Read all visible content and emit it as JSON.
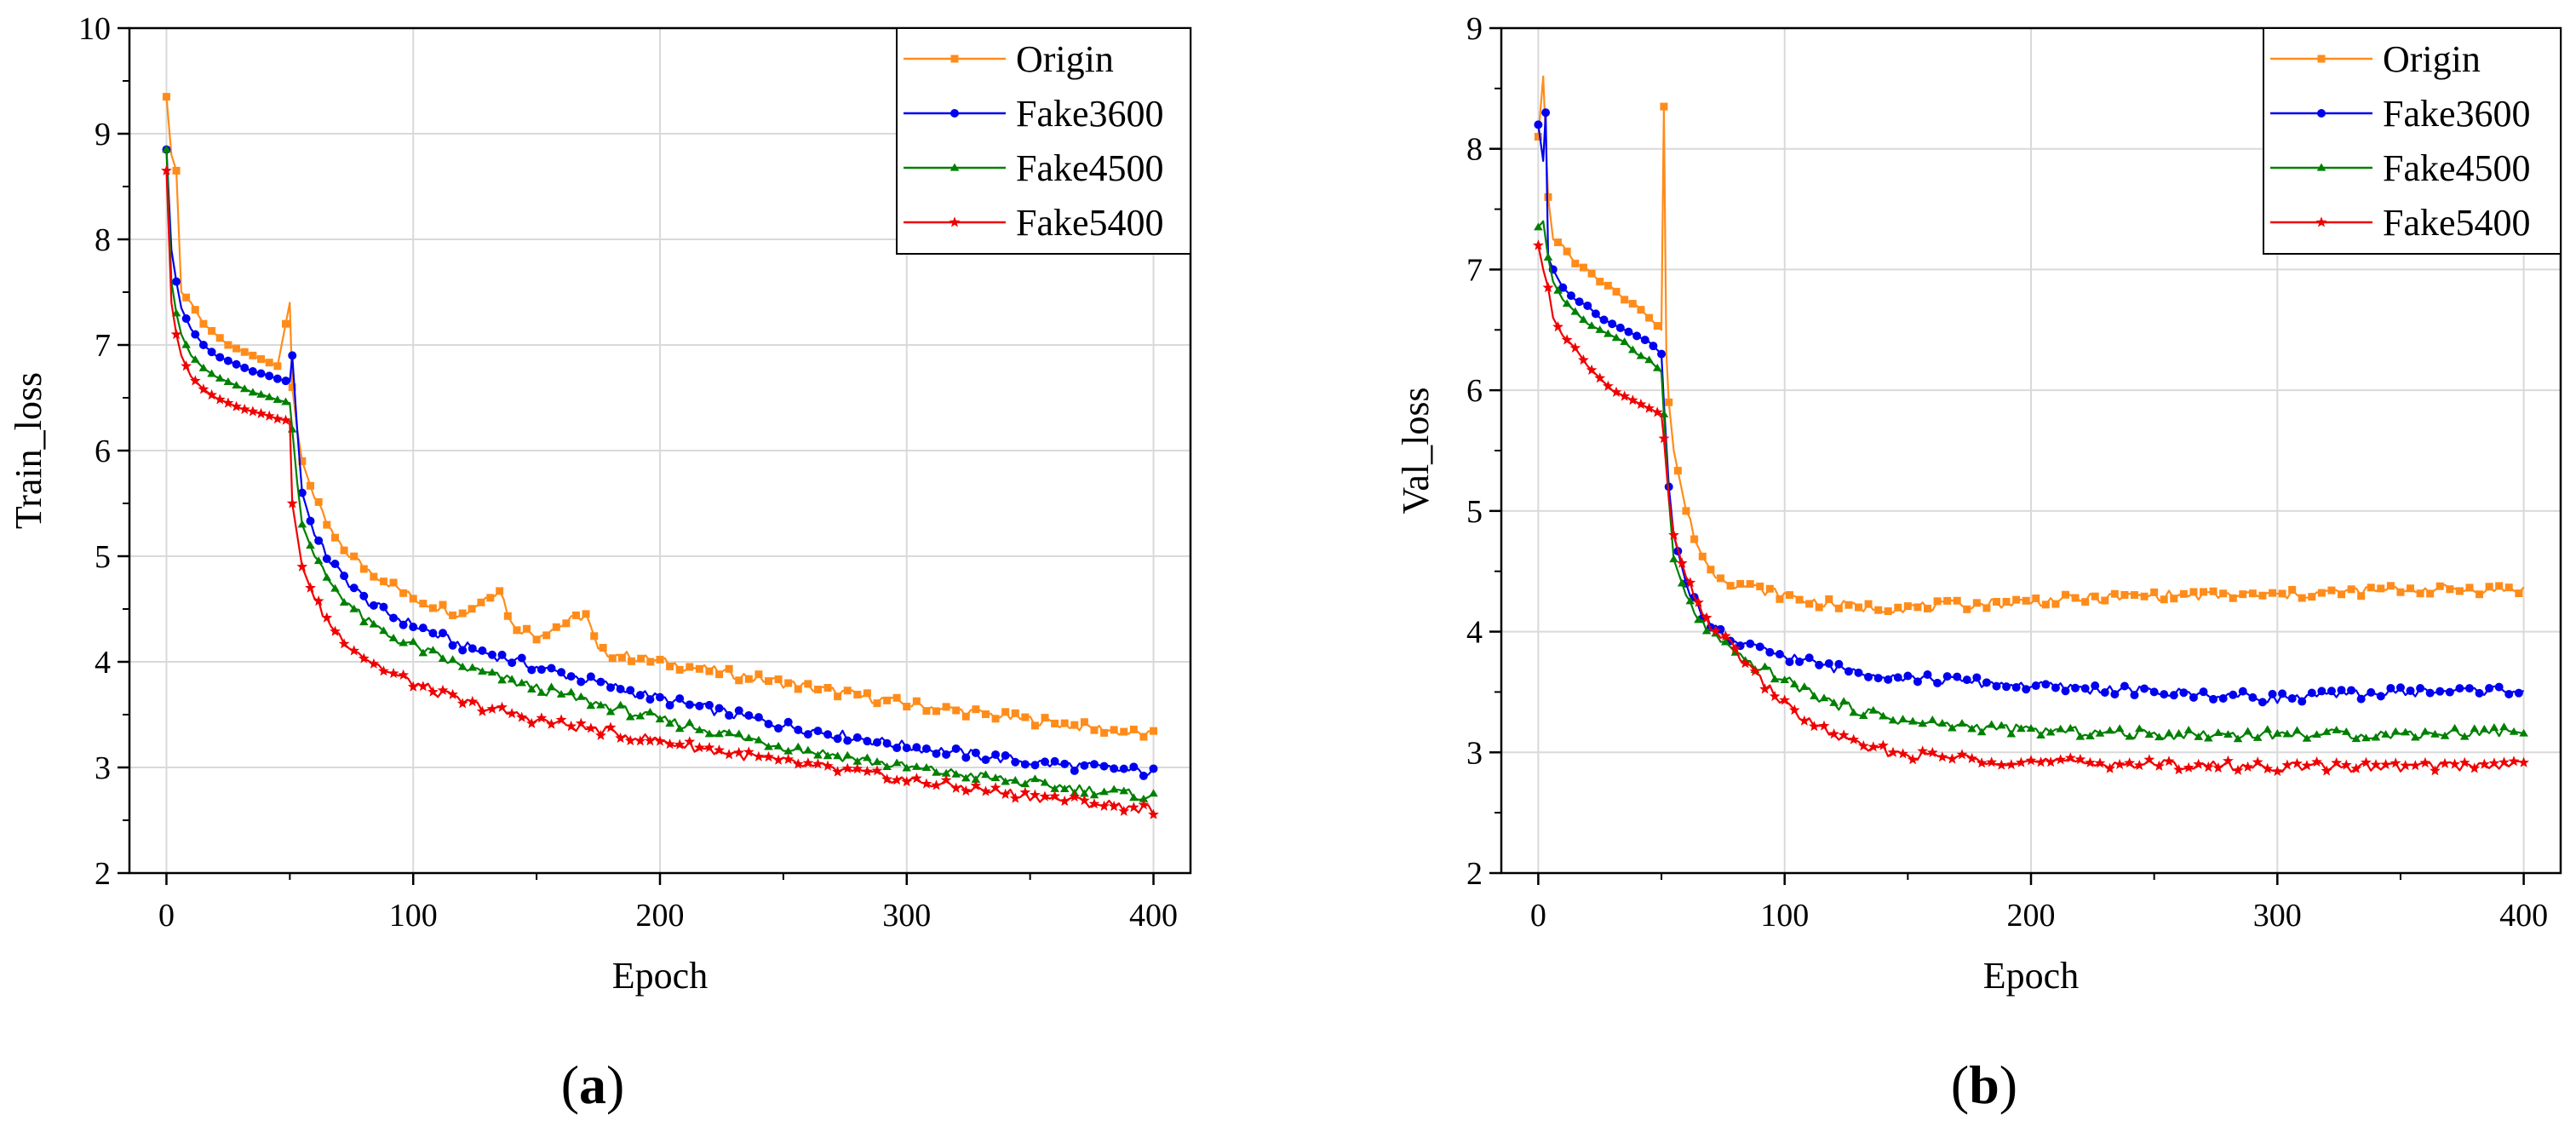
{
  "figure": {
    "panels": [
      {
        "label_open": "(",
        "label_letter": "a",
        "label_close": ")"
      },
      {
        "label_open": "(",
        "label_letter": "b",
        "label_close": ")"
      }
    ]
  },
  "colors": {
    "Origin": "#ff8c1a",
    "Fake3600": "#0000f0",
    "Fake4500": "#008000",
    "Fake5400": "#f00000",
    "grid": "#d9d9d9",
    "axis": "#000000"
  },
  "chart_data": [
    {
      "type": "line",
      "panel": "a",
      "xlabel": "Epoch",
      "ylabel": "Train_loss",
      "xlim": [
        -15,
        415
      ],
      "ylim": [
        2,
        10
      ],
      "xticks": [
        0,
        100,
        200,
        300,
        400
      ],
      "xtick_labels": [
        "0",
        "100",
        "200",
        "300",
        "400"
      ],
      "yticks": [
        2,
        3,
        4,
        5,
        6,
        7,
        8,
        9,
        10
      ],
      "ytick_labels": [
        "2",
        "3",
        "4",
        "5",
        "6",
        "7",
        "8",
        "9",
        "10"
      ],
      "grid": true,
      "legend_position": "top-right",
      "series": [
        {
          "name": "Origin",
          "marker": "square",
          "x": [
            0,
            2,
            4,
            6,
            10,
            15,
            20,
            25,
            30,
            35,
            40,
            45,
            50,
            51,
            53,
            55,
            60,
            65,
            70,
            80,
            90,
            100,
            120,
            135,
            140,
            150,
            170,
            175,
            200,
            250,
            300,
            350,
            400
          ],
          "y": [
            9.35,
            8.8,
            8.65,
            7.5,
            7.4,
            7.2,
            7.1,
            7.0,
            6.95,
            6.9,
            6.85,
            6.8,
            7.4,
            6.6,
            6.2,
            5.9,
            5.55,
            5.3,
            5.1,
            4.9,
            4.75,
            4.6,
            4.45,
            4.7,
            4.35,
            4.25,
            4.45,
            4.1,
            4.0,
            3.8,
            3.6,
            3.45,
            3.3
          ]
        },
        {
          "name": "Fake3600",
          "marker": "circle",
          "x": [
            0,
            2,
            4,
            6,
            10,
            15,
            20,
            25,
            30,
            35,
            40,
            45,
            50,
            51,
            53,
            55,
            60,
            65,
            70,
            80,
            90,
            100,
            120,
            150,
            200,
            250,
            300,
            350,
            400
          ],
          "y": [
            8.85,
            7.9,
            7.6,
            7.35,
            7.15,
            7.0,
            6.9,
            6.85,
            6.8,
            6.75,
            6.72,
            6.68,
            6.65,
            6.9,
            6.2,
            5.6,
            5.2,
            5.0,
            4.85,
            4.6,
            4.45,
            4.35,
            4.15,
            3.95,
            3.65,
            3.4,
            3.2,
            3.05,
            2.95
          ]
        },
        {
          "name": "Fake4500",
          "marker": "triangle",
          "x": [
            0,
            2,
            4,
            6,
            10,
            15,
            20,
            25,
            30,
            35,
            40,
            45,
            50,
            51,
            53,
            55,
            60,
            65,
            70,
            80,
            90,
            100,
            120,
            150,
            200,
            250,
            300,
            350,
            400
          ],
          "y": [
            8.85,
            7.6,
            7.3,
            7.1,
            6.9,
            6.78,
            6.7,
            6.65,
            6.6,
            6.55,
            6.52,
            6.48,
            6.45,
            6.2,
            5.7,
            5.3,
            5.0,
            4.8,
            4.65,
            4.4,
            4.25,
            4.15,
            3.95,
            3.75,
            3.45,
            3.2,
            3.0,
            2.85,
            2.72
          ]
        },
        {
          "name": "Fake5400",
          "marker": "star",
          "x": [
            0,
            2,
            4,
            6,
            10,
            15,
            20,
            25,
            30,
            35,
            40,
            45,
            50,
            51,
            53,
            55,
            60,
            65,
            70,
            80,
            90,
            100,
            120,
            150,
            200,
            250,
            300,
            350,
            400
          ],
          "y": [
            8.65,
            7.4,
            7.1,
            6.9,
            6.7,
            6.58,
            6.5,
            6.45,
            6.4,
            6.37,
            6.34,
            6.3,
            6.28,
            5.5,
            5.2,
            4.9,
            4.6,
            4.4,
            4.25,
            4.05,
            3.9,
            3.8,
            3.62,
            3.45,
            3.25,
            3.05,
            2.88,
            2.73,
            2.6
          ]
        }
      ]
    },
    {
      "type": "line",
      "panel": "b",
      "xlabel": "Epoch",
      "ylabel": "Val_loss",
      "xlim": [
        -15,
        415
      ],
      "ylim": [
        2,
        9
      ],
      "xticks": [
        0,
        100,
        200,
        300,
        400
      ],
      "xtick_labels": [
        "0",
        "100",
        "200",
        "300",
        "400"
      ],
      "yticks": [
        2,
        3,
        4,
        5,
        6,
        7,
        8,
        9
      ],
      "ytick_labels": [
        "2",
        "3",
        "4",
        "5",
        "6",
        "7",
        "8",
        "9"
      ],
      "grid": true,
      "legend_position": "top-right",
      "series": [
        {
          "name": "Origin",
          "marker": "square",
          "x": [
            0,
            2,
            4,
            6,
            10,
            15,
            20,
            25,
            30,
            35,
            40,
            45,
            50,
            51,
            52,
            53,
            55,
            60,
            65,
            70,
            80,
            90,
            100,
            110,
            130,
            150,
            200,
            250,
            300,
            350,
            400
          ],
          "y": [
            8.1,
            8.6,
            7.6,
            7.25,
            7.2,
            7.05,
            7.0,
            6.9,
            6.85,
            6.75,
            6.7,
            6.6,
            6.5,
            8.35,
            6.3,
            5.9,
            5.5,
            5.0,
            4.7,
            4.5,
            4.4,
            4.35,
            4.3,
            4.25,
            4.2,
            4.2,
            4.25,
            4.3,
            4.3,
            4.35,
            4.35
          ]
        },
        {
          "name": "Fake3600",
          "marker": "circle",
          "x": [
            0,
            2,
            3,
            4,
            6,
            10,
            15,
            20,
            25,
            30,
            35,
            40,
            45,
            50,
            51,
            53,
            55,
            60,
            65,
            70,
            80,
            90,
            100,
            120,
            150,
            200,
            250,
            300,
            350,
            400
          ],
          "y": [
            8.2,
            7.9,
            8.3,
            7.1,
            7.0,
            6.85,
            6.75,
            6.7,
            6.6,
            6.55,
            6.5,
            6.45,
            6.4,
            6.3,
            5.9,
            5.2,
            4.8,
            4.4,
            4.2,
            4.05,
            3.9,
            3.85,
            3.8,
            3.7,
            3.62,
            3.55,
            3.5,
            3.45,
            3.5,
            3.52
          ]
        },
        {
          "name": "Fake4500",
          "marker": "triangle",
          "x": [
            0,
            2,
            4,
            6,
            10,
            15,
            20,
            25,
            30,
            35,
            40,
            45,
            50,
            51,
            53,
            55,
            60,
            65,
            70,
            80,
            90,
            100,
            120,
            150,
            200,
            250,
            300,
            350,
            400
          ],
          "y": [
            7.35,
            7.4,
            7.1,
            6.9,
            6.75,
            6.65,
            6.55,
            6.5,
            6.45,
            6.4,
            6.3,
            6.25,
            6.15,
            5.8,
            5.1,
            4.6,
            4.3,
            4.1,
            4.0,
            3.8,
            3.7,
            3.6,
            3.4,
            3.25,
            3.18,
            3.15,
            3.15,
            3.15,
            3.18
          ]
        },
        {
          "name": "Fake5400",
          "marker": "star",
          "x": [
            0,
            2,
            4,
            6,
            10,
            15,
            20,
            25,
            30,
            35,
            40,
            45,
            50,
            51,
            53,
            55,
            60,
            65,
            70,
            80,
            90,
            100,
            110,
            120,
            130,
            150,
            200,
            250,
            300,
            350,
            400
          ],
          "y": [
            7.2,
            7.0,
            6.85,
            6.6,
            6.45,
            6.35,
            6.2,
            6.1,
            6.0,
            5.95,
            5.9,
            5.85,
            5.8,
            5.6,
            5.1,
            4.8,
            4.45,
            4.2,
            4.05,
            3.85,
            3.6,
            3.4,
            3.25,
            3.15,
            3.05,
            2.98,
            2.92,
            2.9,
            2.88,
            2.88,
            2.9
          ]
        }
      ]
    }
  ]
}
